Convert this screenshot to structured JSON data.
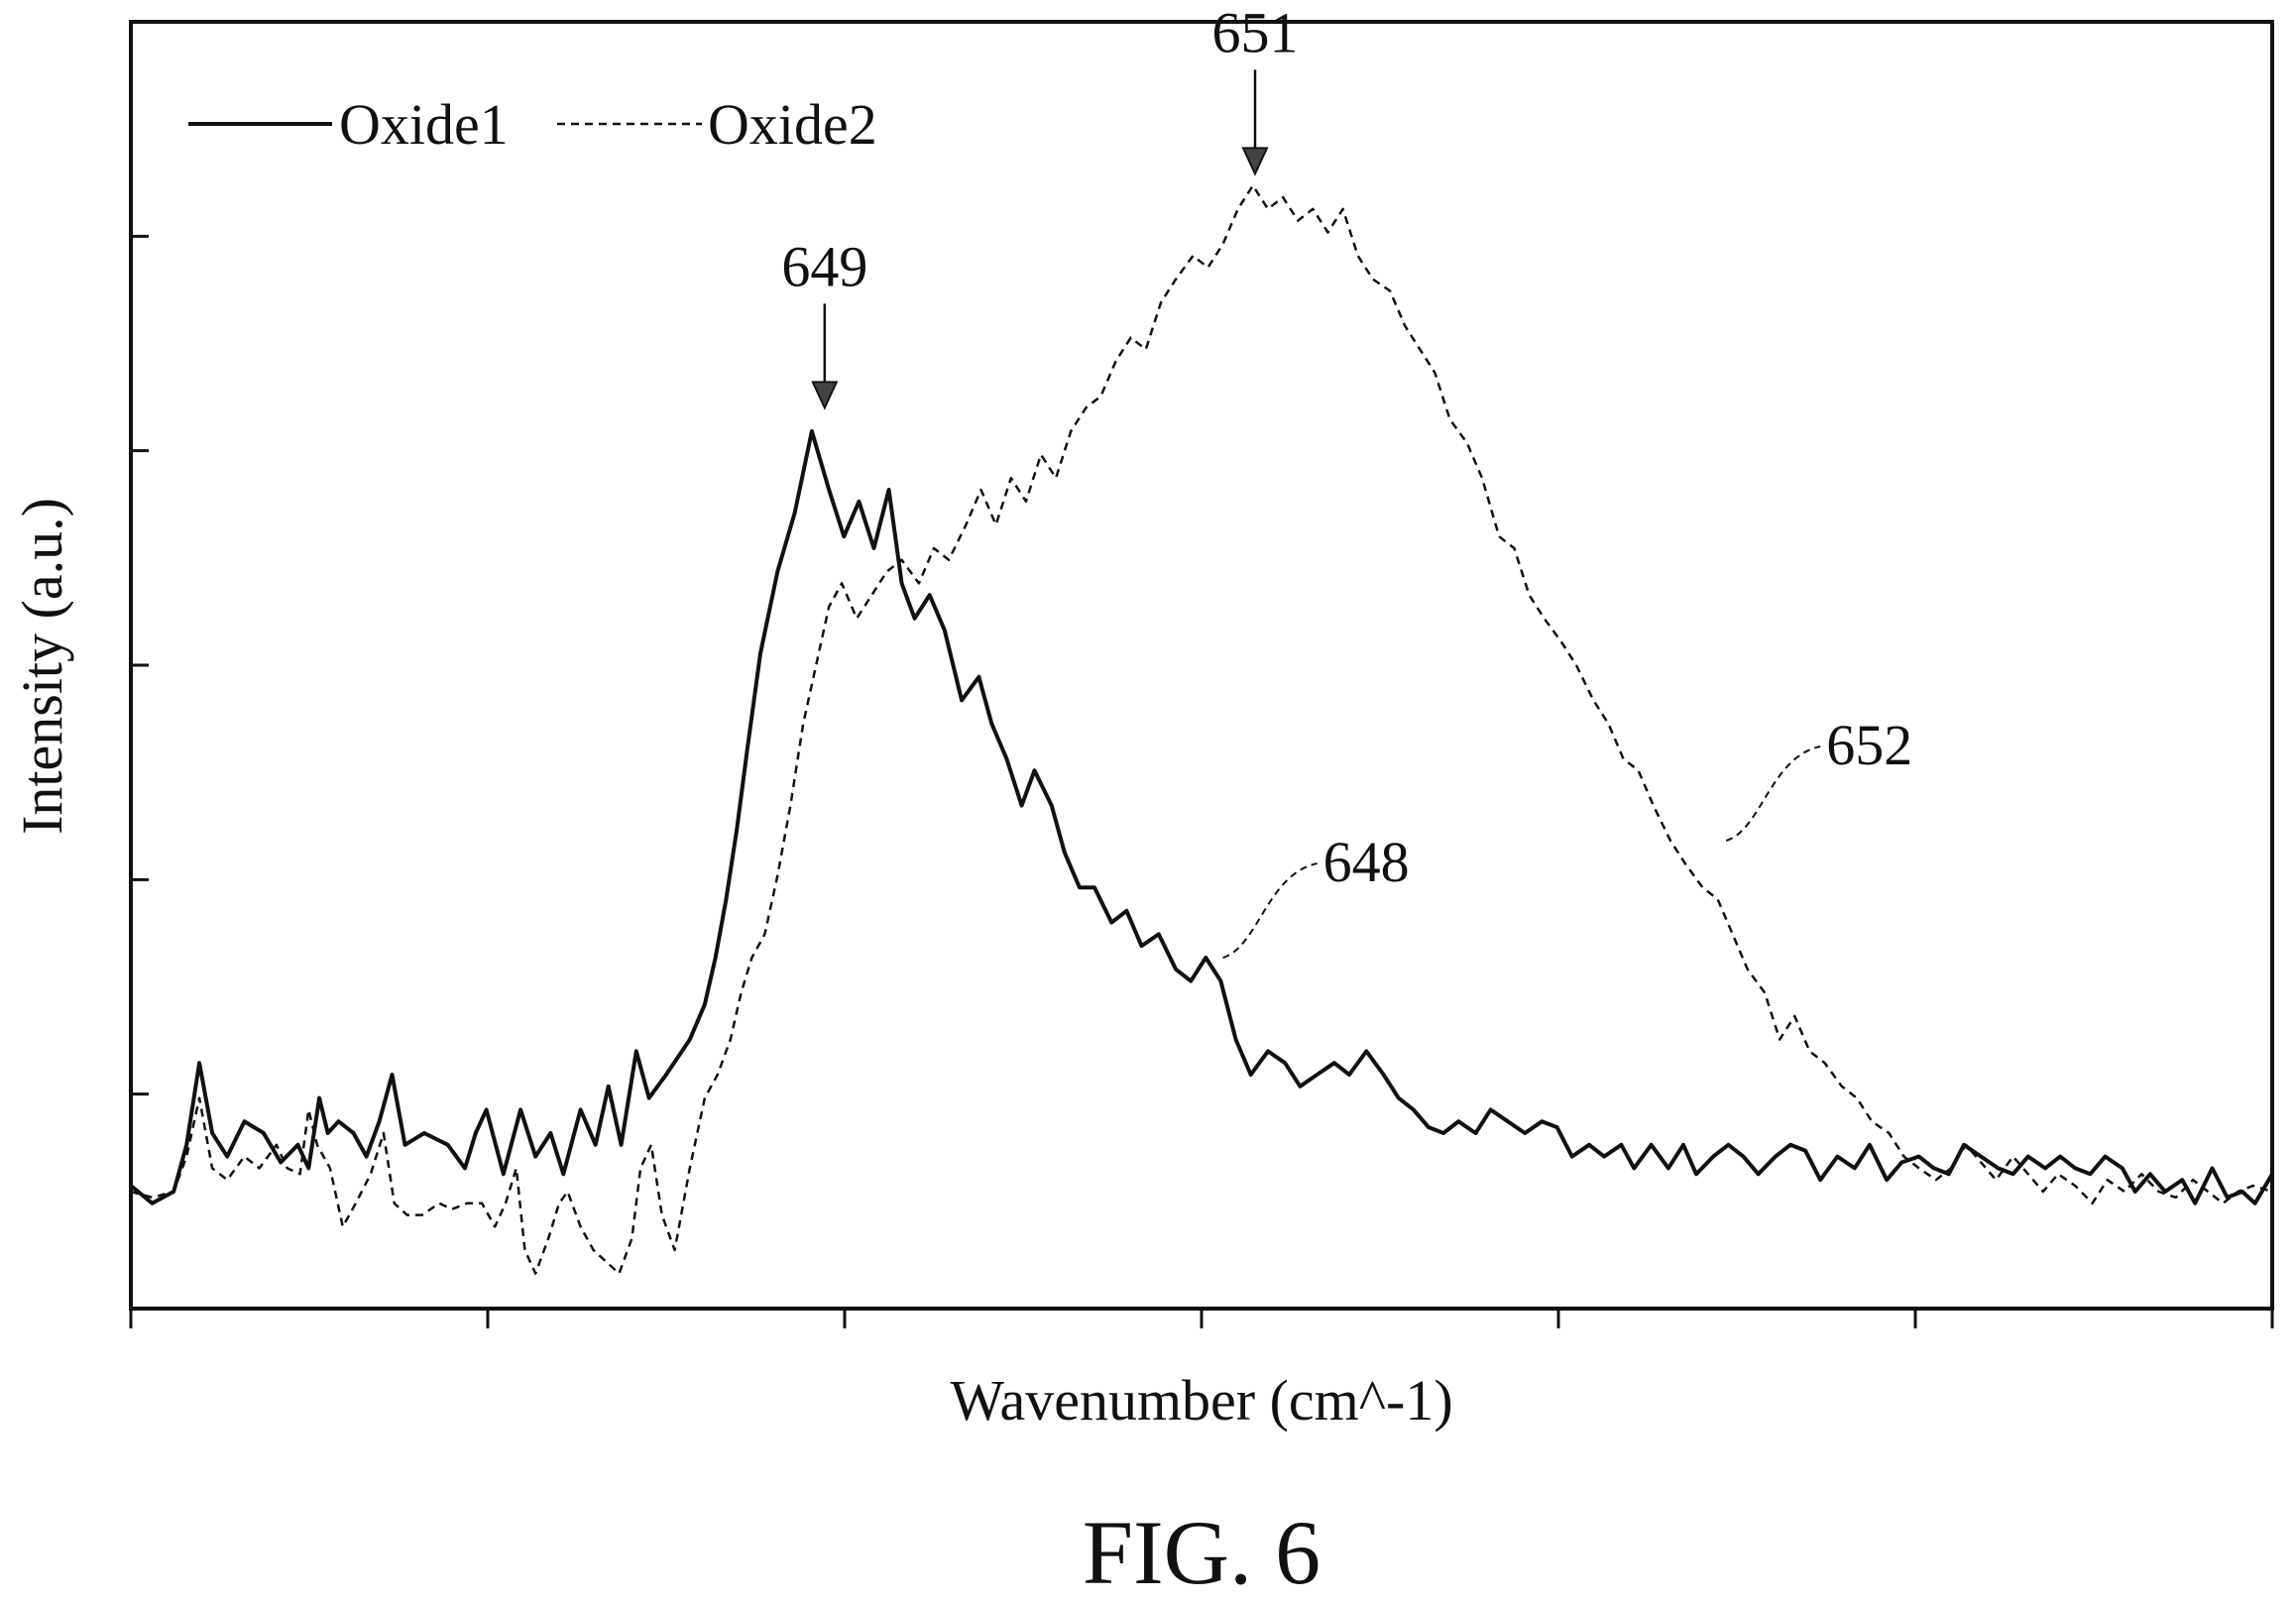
{
  "figure": {
    "caption": "FIG. 6"
  },
  "chart_data": {
    "type": "line",
    "xlabel": "Wavenumber (cm^-1)",
    "ylabel": "Intensity (a.u.)",
    "x_tick_count": 7,
    "y_tick_count": 7,
    "tick_labels_shown": false,
    "grid": false,
    "legend_position": "top-left",
    "xlim": [
      0,
      100
    ],
    "ylim": [
      -10,
      100
    ],
    "series": [
      {
        "name": "Oxide1",
        "style": "solid",
        "color": "#111111",
        "points": [
          [
            0,
            0.5
          ],
          [
            1,
            -1
          ],
          [
            2,
            0
          ],
          [
            2.6,
            4
          ],
          [
            3.2,
            11
          ],
          [
            3.8,
            5
          ],
          [
            4.5,
            3
          ],
          [
            5.3,
            6
          ],
          [
            6.2,
            5
          ],
          [
            7,
            2.5
          ],
          [
            7.8,
            4
          ],
          [
            8.3,
            2
          ],
          [
            8.8,
            8
          ],
          [
            9.2,
            5
          ],
          [
            9.7,
            6
          ],
          [
            10.4,
            5
          ],
          [
            11,
            3
          ],
          [
            11.6,
            6
          ],
          [
            12.2,
            10
          ],
          [
            12.8,
            4
          ],
          [
            13.7,
            5
          ],
          [
            14.8,
            4
          ],
          [
            15.6,
            2
          ],
          [
            16.1,
            5
          ],
          [
            16.6,
            7
          ],
          [
            17.4,
            1.5
          ],
          [
            18.2,
            7
          ],
          [
            18.9,
            3
          ],
          [
            19.6,
            5
          ],
          [
            20.2,
            1.5
          ],
          [
            21,
            7
          ],
          [
            21.7,
            4
          ],
          [
            22.3,
            9
          ],
          [
            22.9,
            4
          ],
          [
            23.6,
            12
          ],
          [
            24.2,
            8
          ],
          [
            25,
            10
          ],
          [
            26.1,
            13
          ],
          [
            26.8,
            16
          ],
          [
            27.3,
            20
          ],
          [
            27.8,
            25
          ],
          [
            28.3,
            31
          ],
          [
            28.8,
            38
          ],
          [
            29.4,
            46
          ],
          [
            30.2,
            53
          ],
          [
            31,
            58
          ],
          [
            31.8,
            65
          ],
          [
            32.6,
            60
          ],
          [
            33.3,
            56
          ],
          [
            34,
            59
          ],
          [
            34.7,
            55
          ],
          [
            35.4,
            60
          ],
          [
            36,
            52
          ],
          [
            36.6,
            49
          ],
          [
            37.3,
            51
          ],
          [
            38,
            48
          ],
          [
            38.8,
            42
          ],
          [
            39.6,
            44
          ],
          [
            40.2,
            40
          ],
          [
            40.9,
            37
          ],
          [
            41.6,
            33
          ],
          [
            42.2,
            36
          ],
          [
            43,
            33
          ],
          [
            43.6,
            29
          ],
          [
            44.3,
            26
          ],
          [
            45,
            26
          ],
          [
            45.8,
            23
          ],
          [
            46.5,
            24
          ],
          [
            47.2,
            21
          ],
          [
            48,
            22
          ],
          [
            48.8,
            19
          ],
          [
            49.5,
            18
          ],
          [
            50.2,
            20
          ],
          [
            50.9,
            18
          ],
          [
            51.6,
            13
          ],
          [
            52.3,
            10
          ],
          [
            53.1,
            12
          ],
          [
            53.9,
            11
          ],
          [
            54.6,
            9
          ],
          [
            55.4,
            10
          ],
          [
            56.2,
            11
          ],
          [
            56.9,
            10
          ],
          [
            57.7,
            12
          ],
          [
            58.5,
            10
          ],
          [
            59.2,
            8
          ],
          [
            59.9,
            7
          ],
          [
            60.6,
            5.5
          ],
          [
            61.3,
            5
          ],
          [
            62,
            6
          ],
          [
            62.8,
            5
          ],
          [
            63.5,
            7
          ],
          [
            64.3,
            6
          ],
          [
            65.1,
            5
          ],
          [
            65.9,
            6
          ],
          [
            66.6,
            5.5
          ],
          [
            67.3,
            3
          ],
          [
            68.1,
            4
          ],
          [
            68.8,
            3
          ],
          [
            69.6,
            4
          ],
          [
            70.2,
            2
          ],
          [
            71,
            4
          ],
          [
            71.8,
            2
          ],
          [
            72.5,
            4
          ],
          [
            73.1,
            1.5
          ],
          [
            73.9,
            3
          ],
          [
            74.6,
            4
          ],
          [
            75.3,
            3
          ],
          [
            76,
            1.5
          ],
          [
            76.8,
            3
          ],
          [
            77.5,
            4
          ],
          [
            78.2,
            3.5
          ],
          [
            78.9,
            1
          ],
          [
            79.7,
            3
          ],
          [
            80.5,
            2
          ],
          [
            81.2,
            4
          ],
          [
            82,
            1
          ],
          [
            82.7,
            2.5
          ],
          [
            83.5,
            3
          ],
          [
            84.2,
            2
          ],
          [
            84.9,
            1.5
          ],
          [
            85.6,
            4
          ],
          [
            86.4,
            3
          ],
          [
            87.2,
            2
          ],
          [
            87.9,
            1.5
          ],
          [
            88.6,
            3
          ],
          [
            89.4,
            2
          ],
          [
            90.1,
            3
          ],
          [
            90.8,
            2
          ],
          [
            91.5,
            1.5
          ],
          [
            92.2,
            3
          ],
          [
            93,
            2
          ],
          [
            93.6,
            0
          ],
          [
            94.3,
            1.5
          ],
          [
            95,
            0
          ],
          [
            95.8,
            1
          ],
          [
            96.4,
            -1
          ],
          [
            97.2,
            2
          ],
          [
            97.9,
            -0.5
          ],
          [
            98.6,
            0
          ],
          [
            99.2,
            -1
          ],
          [
            100,
            1.5
          ]
        ]
      },
      {
        "name": "Oxide2",
        "style": "dashed",
        "color": "#111111",
        "points": [
          [
            0,
            0
          ],
          [
            1,
            -0.5
          ],
          [
            2,
            0
          ],
          [
            2.6,
            3
          ],
          [
            3.2,
            8
          ],
          [
            3.8,
            2
          ],
          [
            4.5,
            1
          ],
          [
            5.3,
            3
          ],
          [
            6,
            2
          ],
          [
            6.8,
            4
          ],
          [
            7.3,
            2
          ],
          [
            7.9,
            1.5
          ],
          [
            8.3,
            7
          ],
          [
            8.7,
            4
          ],
          [
            9.3,
            2
          ],
          [
            9.9,
            -3
          ],
          [
            10.5,
            -1
          ],
          [
            11.2,
            1.5
          ],
          [
            11.8,
            5
          ],
          [
            12.3,
            -1
          ],
          [
            12.9,
            -2
          ],
          [
            13.6,
            -2
          ],
          [
            14.4,
            -1
          ],
          [
            15,
            -1.5
          ],
          [
            15.7,
            -1
          ],
          [
            16.4,
            -1
          ],
          [
            17,
            -3
          ],
          [
            17.5,
            -1
          ],
          [
            18,
            2
          ],
          [
            18.4,
            -5
          ],
          [
            18.9,
            -7
          ],
          [
            19.5,
            -4
          ],
          [
            20,
            -1
          ],
          [
            20.4,
            0
          ],
          [
            21,
            -3
          ],
          [
            21.6,
            -5
          ],
          [
            22.2,
            -6
          ],
          [
            22.8,
            -7
          ],
          [
            23.4,
            -4
          ],
          [
            23.8,
            2
          ],
          [
            24.3,
            4
          ],
          [
            24.8,
            -2
          ],
          [
            25.4,
            -5
          ],
          [
            26.1,
            2
          ],
          [
            26.8,
            8
          ],
          [
            27.4,
            10
          ],
          [
            28,
            13
          ],
          [
            28.5,
            17
          ],
          [
            29,
            20
          ],
          [
            29.6,
            22
          ],
          [
            30.2,
            27
          ],
          [
            30.8,
            33
          ],
          [
            31.4,
            40
          ],
          [
            32,
            45
          ],
          [
            32.6,
            50
          ],
          [
            33.2,
            52
          ],
          [
            33.9,
            49
          ],
          [
            34.6,
            51
          ],
          [
            35.3,
            53
          ],
          [
            36,
            54
          ],
          [
            36.8,
            52
          ],
          [
            37.5,
            55
          ],
          [
            38.2,
            54
          ],
          [
            39,
            57
          ],
          [
            39.7,
            60
          ],
          [
            40.4,
            57
          ],
          [
            41.1,
            61
          ],
          [
            41.8,
            59
          ],
          [
            42.5,
            63
          ],
          [
            43.2,
            61
          ],
          [
            43.9,
            65
          ],
          [
            44.6,
            67
          ],
          [
            45.3,
            68
          ],
          [
            46,
            71
          ],
          [
            46.7,
            73
          ],
          [
            47.4,
            72
          ],
          [
            48.1,
            76
          ],
          [
            48.8,
            78
          ],
          [
            49.6,
            80
          ],
          [
            50.3,
            79
          ],
          [
            51,
            81
          ],
          [
            51.7,
            84
          ],
          [
            52.4,
            86
          ],
          [
            53.1,
            84
          ],
          [
            53.8,
            85
          ],
          [
            54.5,
            83
          ],
          [
            55.2,
            84
          ],
          [
            55.9,
            82
          ],
          [
            56.6,
            84
          ],
          [
            57.3,
            80
          ],
          [
            58,
            78
          ],
          [
            58.8,
            77
          ],
          [
            59.5,
            74
          ],
          [
            60.2,
            72
          ],
          [
            60.9,
            70
          ],
          [
            61.6,
            66
          ],
          [
            62.4,
            64
          ],
          [
            63.1,
            61
          ],
          [
            63.9,
            56
          ],
          [
            64.6,
            55
          ],
          [
            65.3,
            51
          ],
          [
            66,
            49
          ],
          [
            66.8,
            47
          ],
          [
            67.5,
            45
          ],
          [
            68.3,
            42
          ],
          [
            69,
            40
          ],
          [
            69.7,
            37
          ],
          [
            70.4,
            36
          ],
          [
            71.1,
            33
          ],
          [
            71.9,
            30
          ],
          [
            72.6,
            28
          ],
          [
            73.4,
            26
          ],
          [
            74.1,
            25
          ],
          [
            74.8,
            22
          ],
          [
            75.5,
            19
          ],
          [
            76.3,
            17
          ],
          [
            77,
            13
          ],
          [
            77.7,
            15
          ],
          [
            78.4,
            12
          ],
          [
            79.1,
            11
          ],
          [
            79.9,
            9
          ],
          [
            80.6,
            8
          ],
          [
            81.3,
            6
          ],
          [
            82.1,
            5
          ],
          [
            82.8,
            3
          ],
          [
            83.5,
            2
          ],
          [
            84.3,
            1
          ],
          [
            85,
            2
          ],
          [
            85.7,
            4
          ],
          [
            86.4,
            2.5
          ],
          [
            87.1,
            1
          ],
          [
            87.9,
            3
          ],
          [
            88.6,
            1.5
          ],
          [
            89.3,
            0
          ],
          [
            90,
            1.5
          ],
          [
            90.8,
            0.5
          ],
          [
            91.6,
            -1
          ],
          [
            92.3,
            1
          ],
          [
            93.1,
            0
          ],
          [
            93.9,
            1.5
          ],
          [
            94.7,
            0
          ],
          [
            95.5,
            -0.5
          ],
          [
            96.3,
            1
          ],
          [
            97,
            0
          ],
          [
            97.7,
            -1
          ],
          [
            98.4,
            0
          ],
          [
            99.1,
            0.5
          ],
          [
            100,
            0
          ]
        ]
      }
    ],
    "annotations": [
      {
        "label": "649",
        "type": "peak_arrow",
        "series": "Oxide1",
        "at": [
          32.4,
          67
        ]
      },
      {
        "label": "651",
        "type": "peak_arrow",
        "series": "Oxide2",
        "at": [
          52.5,
          87
        ]
      },
      {
        "label": "648",
        "type": "leader",
        "series": "Oxide1",
        "at": [
          51,
          20
        ]
      },
      {
        "label": "652",
        "type": "leader",
        "series": "Oxide2",
        "at": [
          74.5,
          30
        ]
      }
    ]
  }
}
